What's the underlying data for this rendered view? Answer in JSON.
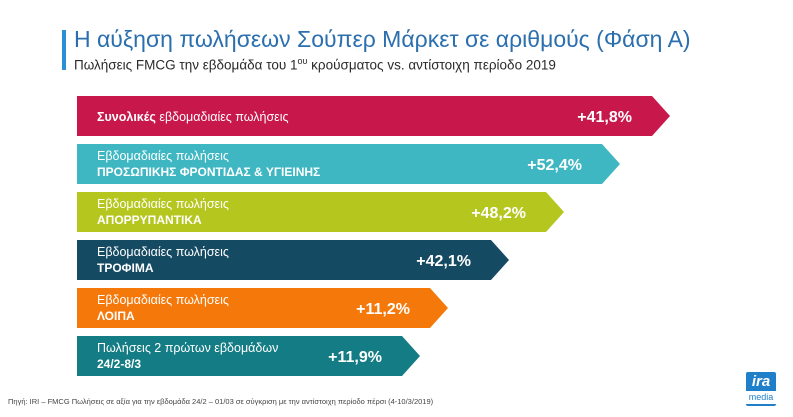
{
  "header": {
    "title": "Η αύξηση πωλήσεων Σούπερ Μάρκετ σε αριθμούς (Φάση Α)",
    "subtitle_before": "Πωλήσεις FMCG την εβδομάδα του 1",
    "subtitle_sup": "ου",
    "subtitle_after": " κρούσματος vs. αντίστοιχη περίοδο 2019"
  },
  "chart_data": {
    "type": "bar",
    "orientation": "horizontal",
    "title": "Η αύξηση πωλήσεων Σούπερ Μάρκετ σε αριθμούς (Φάση Α)",
    "unit": "%",
    "categories": [
      "Συνολικές εβδομαδιαίες πωλήσεις",
      "Εβδομαδιαίες πωλήσεις ΠΡΟΣΩΠΙΚΗΣ ΦΡΟΝΤΙΔΑΣ & ΥΓΙΕΙΝΗΣ",
      "Εβδομαδιαίες πωλήσεις ΑΠΟΡΡΥΠΑΝΤΙΚΑ",
      "Εβδομαδιαίες πωλήσεις ΤΡΟΦΙΜΑ",
      "Εβδομαδιαίες πωλήσεις ΛΟΙΠΑ",
      "Πωλήσεις 2 πρώτων εβδομάδων 24/2-8/3"
    ],
    "values": [
      41.8,
      52.4,
      48.2,
      42.1,
      11.2,
      11.9
    ],
    "bars": [
      {
        "line1_bold": "Συνολικές",
        "line1": " εβδομαδιαίες πωλήσεις",
        "line2": "",
        "value_label": "+41,8%",
        "color": "#c8174a"
      },
      {
        "line1_bold": "",
        "line1": "Εβδομαδιαίες πωλήσεις",
        "line2": "ΠΡΟΣΩΠΙΚΗΣ ΦΡΟΝΤΙΔΑΣ & ΥΓΙΕΙΝΗΣ",
        "value_label": "+52,4%",
        "color": "#3fb7c2"
      },
      {
        "line1_bold": "",
        "line1": "Εβδομαδιαίες πωλήσεις",
        "line2": "ΑΠΟΡΡΥΠΑΝΤΙΚΑ",
        "value_label": "+48,2%",
        "color": "#b5c61f"
      },
      {
        "line1_bold": "",
        "line1": "Εβδομαδιαίες πωλήσεις",
        "line2": "ΤΡΟΦΙΜΑ",
        "value_label": "+42,1%",
        "color": "#154a63"
      },
      {
        "line1_bold": "",
        "line1": "Εβδομαδιαίες πωλήσεις",
        "line2": "ΛΟΙΠΑ",
        "value_label": "+11,2%",
        "color": "#f5780a"
      },
      {
        "line1_bold": "",
        "line1": "Πωλήσεις 2 πρώτων εβδομάδων",
        "line2": "24/2-8/3",
        "value_label": "+11,9%",
        "color": "#137c84"
      }
    ]
  },
  "footer": {
    "source": "Πηγή:  IRI – FMCG Πωλήσεις σε αξία για την εβδομάδα 24/2 – 01/03 σε σύγκριση με την αντίστοιχη περίοδο πέρσι (4-10/3/2019)",
    "logo_top": "ira",
    "logo_bottom": "media"
  }
}
